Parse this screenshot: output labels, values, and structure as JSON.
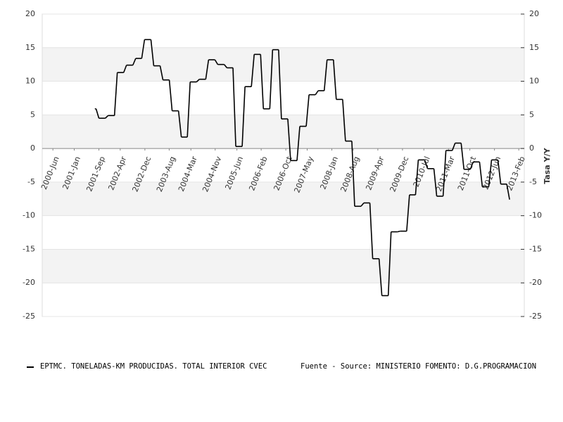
{
  "chart_data": {
    "type": "line",
    "step": true,
    "y2label": "Tasa Y/Y",
    "source": "Fuente - Source: MINISTERIO FOMENTO: D.G.PROGRAMACION",
    "xlim": [
      2000.13,
      2013.23
    ],
    "xticks": [
      {
        "value": 2000.42,
        "label": "2000-Jun"
      },
      {
        "value": 2001.0,
        "label": "2001-Jan"
      },
      {
        "value": 2001.67,
        "label": "2001-Sep"
      },
      {
        "value": 2002.25,
        "label": "2002-Apr"
      },
      {
        "value": 2002.92,
        "label": "2002-Dec"
      },
      {
        "value": 2003.58,
        "label": "2003-Aug"
      },
      {
        "value": 2004.17,
        "label": "2004-Mar"
      },
      {
        "value": 2004.83,
        "label": "2004-Nov"
      },
      {
        "value": 2005.42,
        "label": "2005-Jun"
      },
      {
        "value": 2006.08,
        "label": "2006-Feb"
      },
      {
        "value": 2006.75,
        "label": "2006-Oct"
      },
      {
        "value": 2007.33,
        "label": "2007-May"
      },
      {
        "value": 2008.0,
        "label": "2008-Jan"
      },
      {
        "value": 2008.58,
        "label": "2008-Aug"
      },
      {
        "value": 2009.25,
        "label": "2009-Apr"
      },
      {
        "value": 2009.92,
        "label": "2009-Dec"
      },
      {
        "value": 2010.5,
        "label": "2010-Jul"
      },
      {
        "value": 2011.17,
        "label": "2011-Mar"
      },
      {
        "value": 2011.75,
        "label": "2011-Oct"
      },
      {
        "value": 2012.42,
        "label": "2012-Jun"
      },
      {
        "value": 2013.08,
        "label": "2013-Feb"
      }
    ],
    "ylim": [
      -25,
      20
    ],
    "yticks": [
      20,
      15,
      10,
      5,
      0,
      -5,
      -10,
      -15,
      -20,
      -25
    ],
    "y2lim": [
      -25,
      20
    ],
    "y2ticks": [
      20,
      15,
      10,
      5,
      0,
      -5,
      -10,
      -15,
      -20,
      -25
    ],
    "grid": true,
    "band_color": "#f3f3f3",
    "x": [
      2001.56,
      2001.67,
      2001.92,
      2002.17,
      2002.42,
      2002.67,
      2002.91,
      2003.16,
      2003.41,
      2003.66,
      2003.91,
      2004.15,
      2004.4,
      2004.65,
      2004.9,
      2005.15,
      2005.39,
      2005.64,
      2005.89,
      2006.14,
      2006.39,
      2006.63,
      2006.88,
      2007.13,
      2007.38,
      2007.63,
      2007.87,
      2008.12,
      2008.37,
      2008.62,
      2008.87,
      2009.11,
      2009.36,
      2009.61,
      2009.86,
      2010.11,
      2010.35,
      2010.6,
      2010.85,
      2011.1,
      2011.35,
      2011.59,
      2011.84,
      2012.09,
      2012.34,
      2012.59,
      2012.83
    ],
    "series": [
      {
        "name": "EPTMC. TONELADAS-KM PRODUCIDAS. TOTAL INTERIOR CVEC",
        "color": "#000000",
        "values": [
          5.9,
          4.5,
          4.9,
          11.3,
          12.4,
          13.4,
          16.2,
          12.3,
          10.2,
          5.6,
          1.7,
          9.9,
          10.3,
          13.2,
          12.5,
          12.0,
          0.3,
          9.2,
          14.0,
          5.9,
          14.7,
          4.4,
          -1.8,
          3.3,
          8.0,
          8.6,
          13.2,
          7.3,
          1.1,
          -8.6,
          -8.1,
          -16.4,
          -21.9,
          -12.4,
          -12.3,
          -6.9,
          -1.7,
          -3.0,
          -7.1,
          -0.3,
          0.8,
          -3.1,
          -2.0,
          -5.7,
          -1.7,
          -5.3,
          -7.6
        ]
      }
    ]
  }
}
